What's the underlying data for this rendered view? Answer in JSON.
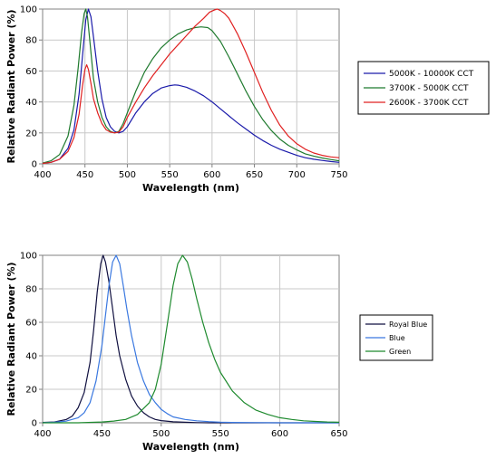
{
  "chart_data": [
    {
      "type": "line",
      "xlabel": "Wavelength (nm)",
      "ylabel": "Relative Radiant Power (%)",
      "xlim": [
        400,
        750
      ],
      "ylim": [
        0,
        100
      ],
      "xticks": [
        400,
        450,
        500,
        550,
        600,
        650,
        700,
        750
      ],
      "yticks": [
        0,
        20,
        40,
        60,
        80,
        100
      ],
      "grid": true,
      "legend_position": "right",
      "series": [
        {
          "name": "5000K - 10000K CCT",
          "color": "#1a1aaa",
          "x": [
            400,
            410,
            420,
            430,
            437,
            443,
            448,
            451,
            454,
            457,
            460,
            465,
            470,
            475,
            480,
            485,
            490,
            495,
            500,
            510,
            520,
            530,
            540,
            550,
            556,
            560,
            570,
            580,
            590,
            600,
            610,
            620,
            630,
            640,
            650,
            660,
            670,
            680,
            690,
            700,
            710,
            720,
            730,
            740,
            750
          ],
          "y": [
            0.5,
            1,
            3,
            10,
            22,
            45,
            75,
            93,
            100,
            95,
            82,
            60,
            42,
            30,
            24,
            21,
            20,
            21,
            24,
            33,
            40,
            45.5,
            49,
            50.5,
            51,
            50.8,
            49.5,
            47,
            44,
            40,
            35.5,
            31,
            26.5,
            22.5,
            18.5,
            15,
            12,
            9.5,
            7.5,
            5.5,
            4,
            3,
            2.2,
            1.5,
            1
          ]
        },
        {
          "name": "3700K - 5000K CCT",
          "color": "#1f7a2e",
          "x": [
            400,
            410,
            420,
            430,
            437,
            442,
            446,
            449,
            451,
            453,
            456,
            460,
            465,
            470,
            475,
            480,
            485,
            490,
            495,
            500,
            510,
            520,
            530,
            540,
            550,
            560,
            570,
            580,
            587,
            595,
            600,
            610,
            620,
            630,
            640,
            650,
            660,
            670,
            680,
            690,
            700,
            710,
            720,
            730,
            740,
            750
          ],
          "y": [
            0.5,
            2,
            6,
            18,
            38,
            62,
            85,
            97,
            100,
            95,
            78,
            55,
            40,
            30,
            24,
            21,
            20,
            21,
            26,
            33,
            47,
            59,
            68,
            75,
            80,
            84,
            86.5,
            88,
            88.5,
            88,
            86,
            79,
            69,
            58,
            47,
            37,
            28.5,
            21.5,
            16,
            12,
            9,
            6.5,
            5,
            3.8,
            2.8,
            2
          ]
        },
        {
          "name": "2600K - 3700K CCT",
          "color": "#e02020",
          "x": [
            400,
            410,
            420,
            430,
            437,
            443,
            447,
            450,
            452,
            454,
            457,
            460,
            465,
            470,
            475,
            480,
            485,
            490,
            495,
            500,
            510,
            520,
            530,
            540,
            550,
            560,
            570,
            580,
            590,
            597,
            603,
            606,
            610,
            615,
            620,
            630,
            640,
            650,
            660,
            670,
            680,
            690,
            700,
            710,
            720,
            730,
            740,
            750
          ],
          "y": [
            0.3,
            1,
            3,
            8,
            17,
            32,
            50,
            61,
            64,
            61,
            52,
            42,
            33,
            26,
            22,
            20.5,
            20,
            20.5,
            24,
            30,
            40,
            49,
            57,
            64,
            71,
            77,
            83,
            89,
            94,
            98,
            99.5,
            100,
            99,
            97,
            94,
            84,
            72,
            59,
            46,
            34.5,
            25,
            18,
            13,
            9.5,
            7,
            5.5,
            4.5,
            4
          ]
        }
      ]
    },
    {
      "type": "line",
      "xlabel": "Wavelength (nm)",
      "ylabel": "Relative Radiant Power (%)",
      "xlim": [
        400,
        650
      ],
      "ylim": [
        0,
        100
      ],
      "xticks": [
        400,
        450,
        500,
        550,
        600,
        650
      ],
      "yticks": [
        0,
        20,
        40,
        60,
        80,
        100
      ],
      "grid": true,
      "legend_position": "right",
      "series": [
        {
          "name": "Royal Blue",
          "color": "#101040",
          "x": [
            400,
            410,
            420,
            425,
            430,
            435,
            440,
            443,
            446,
            449,
            451,
            453,
            456,
            459,
            462,
            465,
            470,
            475,
            480,
            485,
            490,
            495,
            500,
            510,
            520,
            530,
            540,
            550,
            560,
            580,
            600,
            620,
            650
          ],
          "y": [
            0.2,
            0.5,
            2,
            4,
            9,
            18,
            36,
            55,
            78,
            95,
            100,
            96,
            84,
            68,
            52,
            40,
            26,
            16,
            10,
            6,
            3.5,
            2,
            1.3,
            0.6,
            0.3,
            0.1,
            0,
            0,
            0,
            0,
            0,
            0,
            0
          ]
        },
        {
          "name": "Blue",
          "color": "#3a78e0",
          "x": [
            400,
            410,
            420,
            430,
            435,
            440,
            445,
            450,
            453,
            456,
            459,
            462,
            465,
            468,
            471,
            475,
            480,
            485,
            490,
            495,
            500,
            505,
            510,
            520,
            530,
            540,
            550,
            560,
            580,
            600,
            620,
            650
          ],
          "y": [
            0.1,
            0.3,
            1,
            3,
            6,
            12,
            25,
            46,
            64,
            82,
            96,
            100,
            95,
            82,
            68,
            52,
            36,
            25,
            17,
            12,
            8,
            5.5,
            3.5,
            2,
            1.2,
            0.7,
            0.4,
            0.2,
            0.1,
            0,
            0,
            0
          ]
        },
        {
          "name": "Green",
          "color": "#1e8a2e",
          "x": [
            400,
            430,
            450,
            460,
            470,
            480,
            490,
            495,
            500,
            505,
            510,
            514,
            518,
            522,
            526,
            530,
            535,
            540,
            545,
            550,
            560,
            570,
            580,
            590,
            600,
            610,
            620,
            630,
            640,
            650
          ],
          "y": [
            0,
            0,
            0.5,
            1,
            2,
            5,
            12,
            20,
            35,
            58,
            82,
            95,
            100,
            96,
            86,
            74,
            60,
            48,
            38,
            30,
            19,
            12,
            7.5,
            5,
            3,
            2,
            1.2,
            0.8,
            0.5,
            0.3
          ]
        }
      ]
    }
  ]
}
